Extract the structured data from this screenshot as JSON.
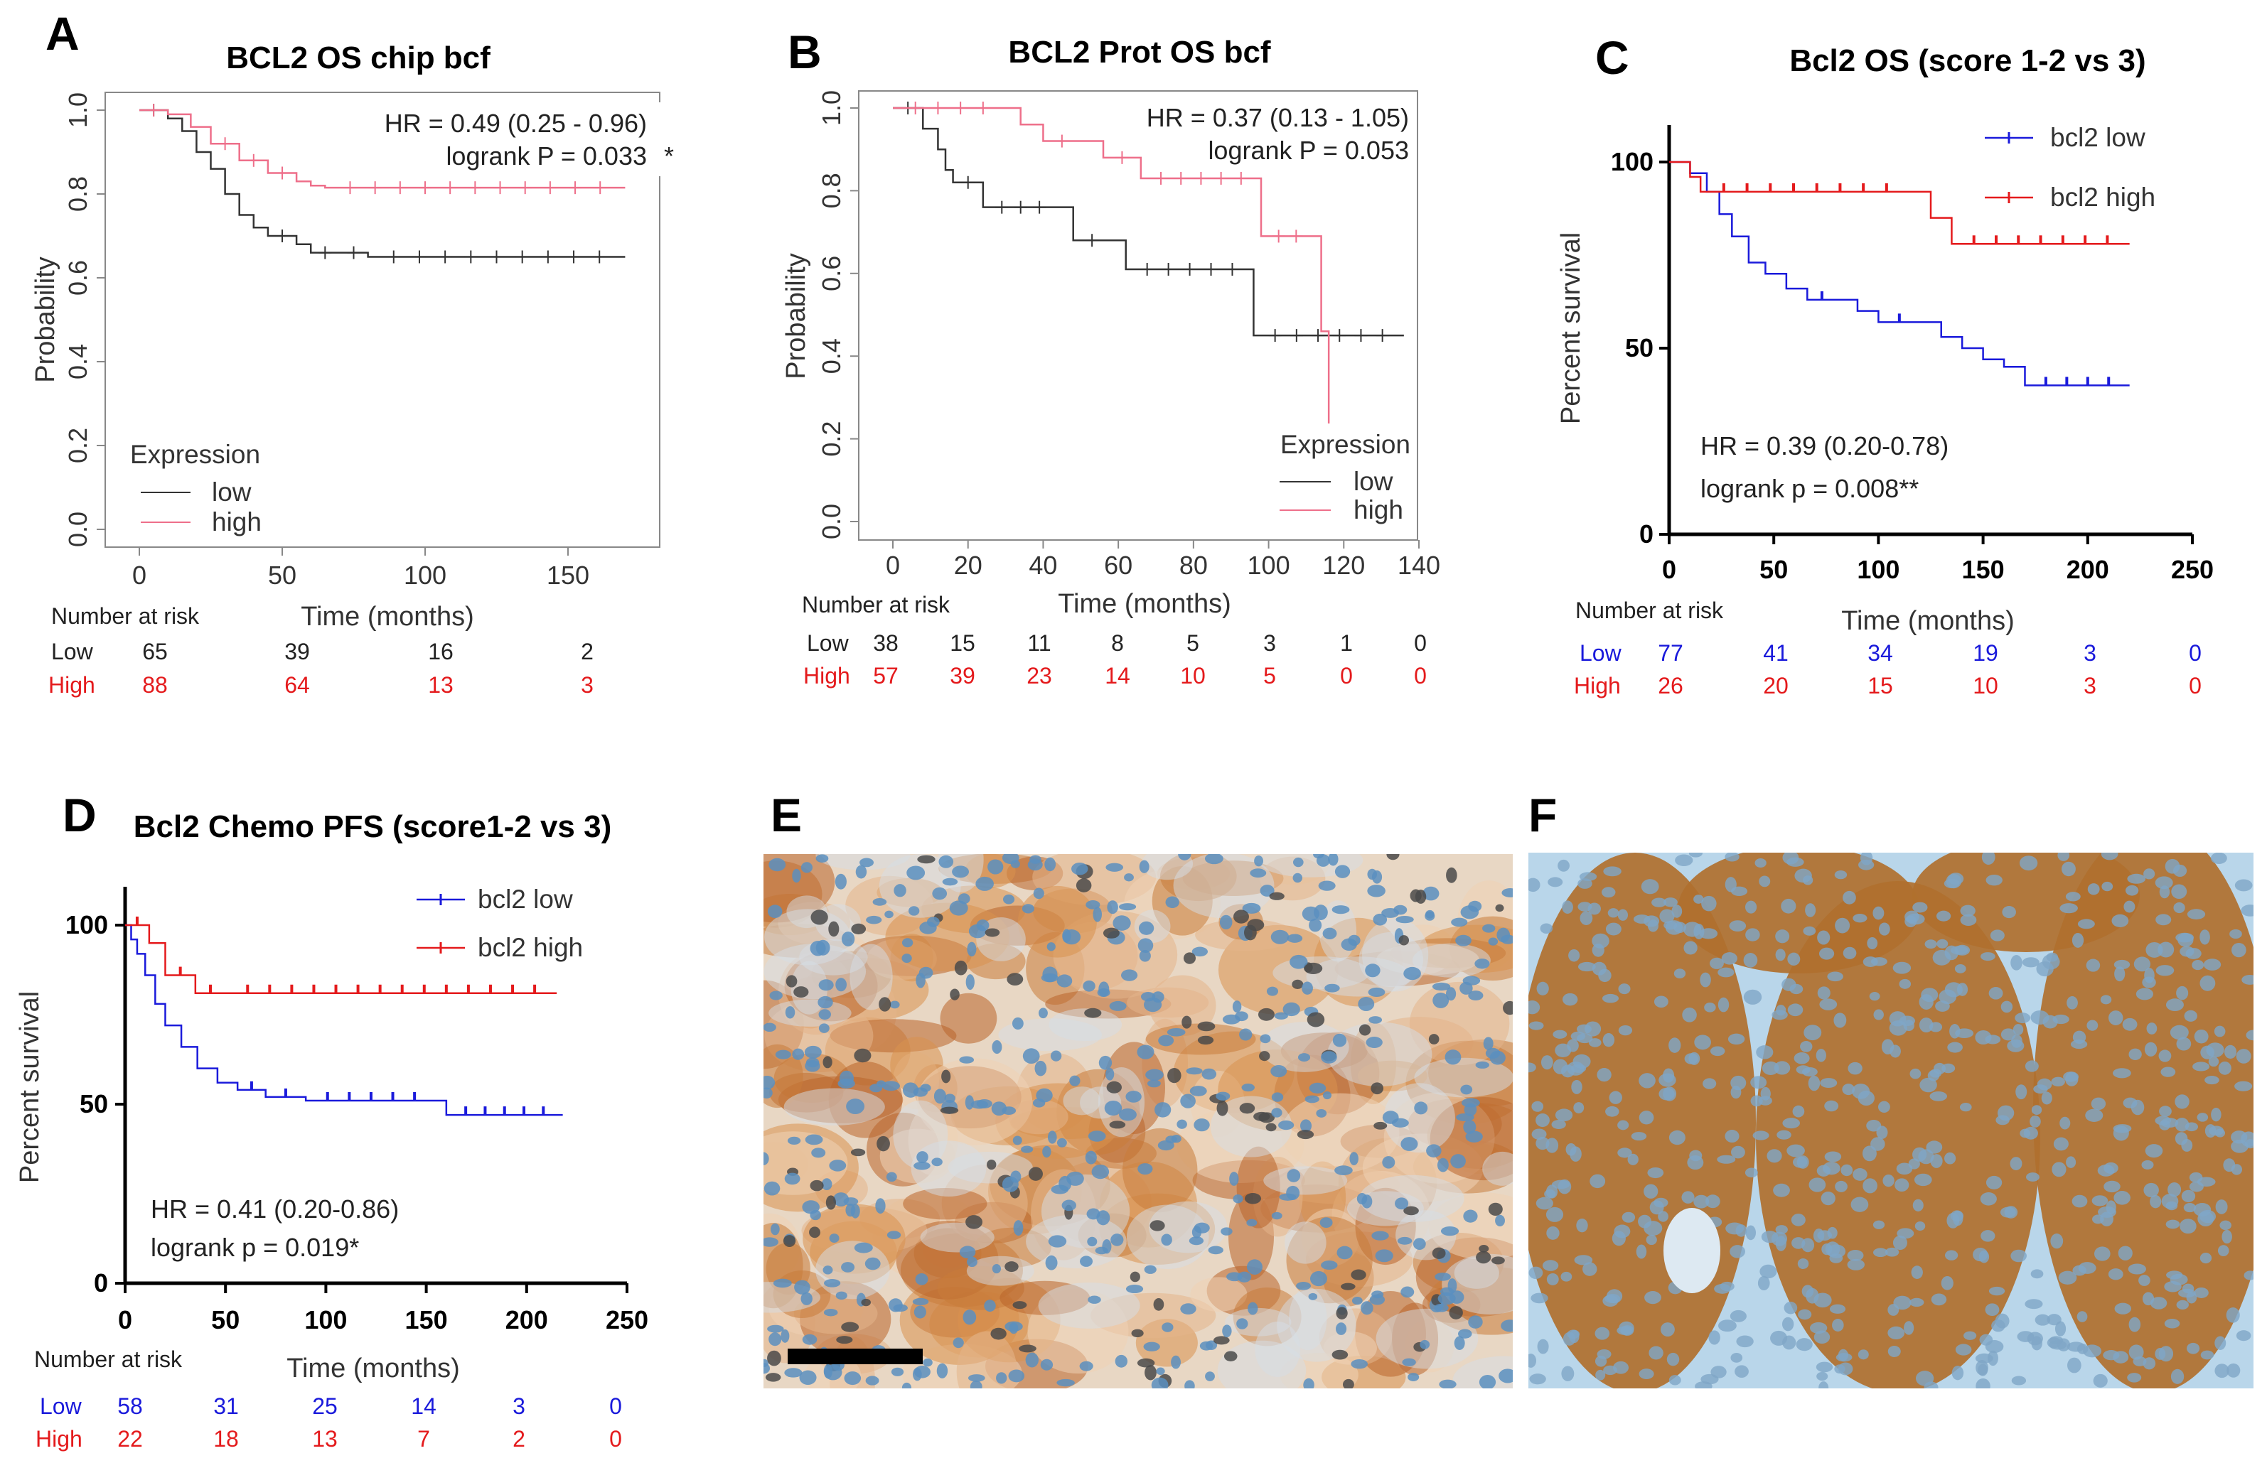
{
  "figure": {
    "panels": [
      {
        "letter": "A",
        "title": "BCL2 OS chip bcf",
        "ylabel": "Probability",
        "xlabel": "Time (months)",
        "stat1": "HR = 0.49 (0.25 - 0.96)",
        "stat2": "logrank P = 0.033",
        "stat_star": "*",
        "legend_title": "Expression",
        "legend_low": "low",
        "legend_high": "high",
        "risk_title": "Number at risk",
        "risk_low_label": "Low",
        "risk_high_label": "High",
        "risk_low": [
          "65",
          "39",
          "16",
          "2"
        ],
        "risk_high": [
          "88",
          "64",
          "13",
          "3"
        ],
        "xticks": [
          "0",
          "50",
          "100",
          "150"
        ],
        "yticks": [
          "0.0",
          "0.2",
          "0.4",
          "0.6",
          "0.8",
          "1.0"
        ]
      },
      {
        "letter": "B",
        "title": "BCL2 Prot OS bcf",
        "ylabel": "Probability",
        "xlabel": "Time (months)",
        "stat1": "HR = 0.37 (0.13 - 1.05)",
        "stat2": "logrank P = 0.053",
        "legend_title": "Expression",
        "legend_low": "low",
        "legend_high": "high",
        "risk_title": "Number at risk",
        "risk_low_label": "Low",
        "risk_high_label": "High",
        "risk_low": [
          "38",
          "15",
          "11",
          "8",
          "5",
          "3",
          "1",
          "0"
        ],
        "risk_high": [
          "57",
          "39",
          "23",
          "14",
          "10",
          "5",
          "0",
          "0"
        ],
        "xticks": [
          "0",
          "20",
          "40",
          "60",
          "80",
          "100",
          "120",
          "140"
        ],
        "yticks": [
          "0.0",
          "0.2",
          "0.4",
          "0.6",
          "0.8",
          "1.0"
        ]
      },
      {
        "letter": "C",
        "title": "Bcl2 OS (score 1-2 vs 3)",
        "ylabel": "Percent survival",
        "xlabel": "Time (months)",
        "stat1": "HR = 0.39 (0.20-0.78)",
        "stat2": "logrank p = 0.008**",
        "legend_low": "bcl2 low",
        "legend_high": "bcl2 high",
        "risk_title": "Number at risk",
        "risk_low_label": "Low",
        "risk_high_label": "High",
        "risk_low": [
          "77",
          "41",
          "34",
          "19",
          "3",
          "0"
        ],
        "risk_high": [
          "26",
          "20",
          "15",
          "10",
          "3",
          "0"
        ],
        "xticks": [
          "0",
          "50",
          "100",
          "150",
          "200",
          "250"
        ],
        "yticks": [
          "0",
          "50",
          "100"
        ]
      },
      {
        "letter": "D",
        "title": "Bcl2 Chemo PFS (score1-2 vs 3)",
        "ylabel": "Percent survival",
        "xlabel": "Time (months)",
        "stat1": "HR = 0.41 (0.20-0.86)",
        "stat2": "logrank p = 0.019*",
        "legend_low": "bcl2 low",
        "legend_high": "bcl2 high",
        "risk_title": "Number at risk",
        "risk_low_label": "Low",
        "risk_high_label": "High",
        "risk_low": [
          "58",
          "31",
          "25",
          "14",
          "3",
          "0"
        ],
        "risk_high": [
          "22",
          "18",
          "13",
          "7",
          "2",
          "0"
        ],
        "xticks": [
          "0",
          "50",
          "100",
          "150",
          "200",
          "250"
        ],
        "yticks": [
          "0",
          "50",
          "100"
        ]
      },
      {
        "letter": "E"
      },
      {
        "letter": "F"
      }
    ],
    "colors": {
      "low_A": "#333333",
      "high_A": "#ee6f8a",
      "low_C": "#1a1adb",
      "high_C": "#e41a1c",
      "stain_brown": "#b5651d",
      "hematoxylin": "#5a8fc0",
      "background": "#ffffff"
    }
  },
  "chart_data": [
    {
      "type": "line",
      "panel": "A",
      "title": "BCL2 OS chip bcf",
      "xlabel": "Time (months)",
      "ylabel": "Probability",
      "xlim": [
        -5,
        178
      ],
      "ylim": [
        -0.05,
        1.05
      ],
      "series": [
        {
          "name": "low",
          "x": [
            0,
            10,
            15,
            20,
            25,
            30,
            35,
            40,
            45,
            55,
            60,
            70,
            80,
            170
          ],
          "y": [
            1.0,
            0.98,
            0.95,
            0.9,
            0.86,
            0.8,
            0.75,
            0.72,
            0.7,
            0.68,
            0.66,
            0.66,
            0.65,
            0.65
          ]
        },
        {
          "name": "high",
          "x": [
            0,
            10,
            18,
            25,
            35,
            45,
            55,
            60,
            65,
            170
          ],
          "y": [
            1.0,
            0.99,
            0.96,
            0.92,
            0.88,
            0.85,
            0.83,
            0.82,
            0.815,
            0.815
          ]
        }
      ],
      "hr": "0.49 (0.25 - 0.96)",
      "logrank_p": 0.033
    },
    {
      "type": "line",
      "panel": "B",
      "title": "BCL2 Prot OS bcf",
      "xlabel": "Time (months)",
      "ylabel": "Probability",
      "xlim": [
        -5,
        140
      ],
      "ylim": [
        -0.05,
        1.05
      ],
      "series": [
        {
          "name": "low",
          "x": [
            0,
            8,
            12,
            14,
            16,
            24,
            44,
            48,
            58,
            62,
            96,
            136
          ],
          "y": [
            1.0,
            0.95,
            0.9,
            0.85,
            0.82,
            0.76,
            0.76,
            0.68,
            0.68,
            0.61,
            0.45,
            0.45
          ]
        },
        {
          "name": "high",
          "x": [
            0,
            30,
            34,
            40,
            50,
            56,
            66,
            98,
            112,
            114,
            116
          ],
          "y": [
            1.0,
            1.0,
            0.96,
            0.92,
            0.92,
            0.88,
            0.83,
            0.69,
            0.69,
            0.46,
            0.0
          ]
        }
      ],
      "hr": "0.37 (0.13 - 1.05)",
      "logrank_p": 0.053
    },
    {
      "type": "line",
      "panel": "C",
      "title": "Bcl2 OS (score 1-2 vs 3)",
      "xlabel": "Time (months)",
      "ylabel": "Percent survival",
      "xlim": [
        0,
        250
      ],
      "ylim": [
        0,
        110
      ],
      "series": [
        {
          "name": "bcl2 low",
          "x": [
            0,
            10,
            18,
            24,
            30,
            38,
            46,
            56,
            66,
            80,
            90,
            100,
            120,
            130,
            140,
            150,
            160,
            170,
            220
          ],
          "y": [
            100,
            97,
            92,
            86,
            80,
            73,
            70,
            66,
            63,
            63,
            60,
            57,
            57,
            53,
            50,
            47,
            45,
            40,
            40
          ]
        },
        {
          "name": "bcl2 high",
          "x": [
            0,
            10,
            15,
            115,
            125,
            135,
            220
          ],
          "y": [
            100,
            96,
            92,
            92,
            85,
            78,
            78
          ]
        }
      ],
      "hr": "0.39 (0.20-0.78)",
      "logrank_p": 0.008
    },
    {
      "type": "line",
      "panel": "D",
      "title": "Bcl2 Chemo PFS (score1-2 vs 3)",
      "xlabel": "Time (months)",
      "ylabel": "Percent survival",
      "xlim": [
        0,
        250
      ],
      "ylim": [
        0,
        110
      ],
      "series": [
        {
          "name": "bcl2 low",
          "x": [
            0,
            3,
            6,
            10,
            15,
            20,
            28,
            36,
            46,
            56,
            70,
            90,
            155,
            160,
            218
          ],
          "y": [
            100,
            96,
            92,
            86,
            78,
            72,
            66,
            60,
            56,
            54,
            52,
            51,
            51,
            47,
            47
          ]
        },
        {
          "name": "bcl2 high",
          "x": [
            0,
            12,
            20,
            35,
            50,
            215
          ],
          "y": [
            100,
            95,
            86,
            81,
            81,
            81
          ]
        }
      ],
      "hr": "0.41 (0.20-0.86)",
      "logrank_p": 0.019
    }
  ]
}
